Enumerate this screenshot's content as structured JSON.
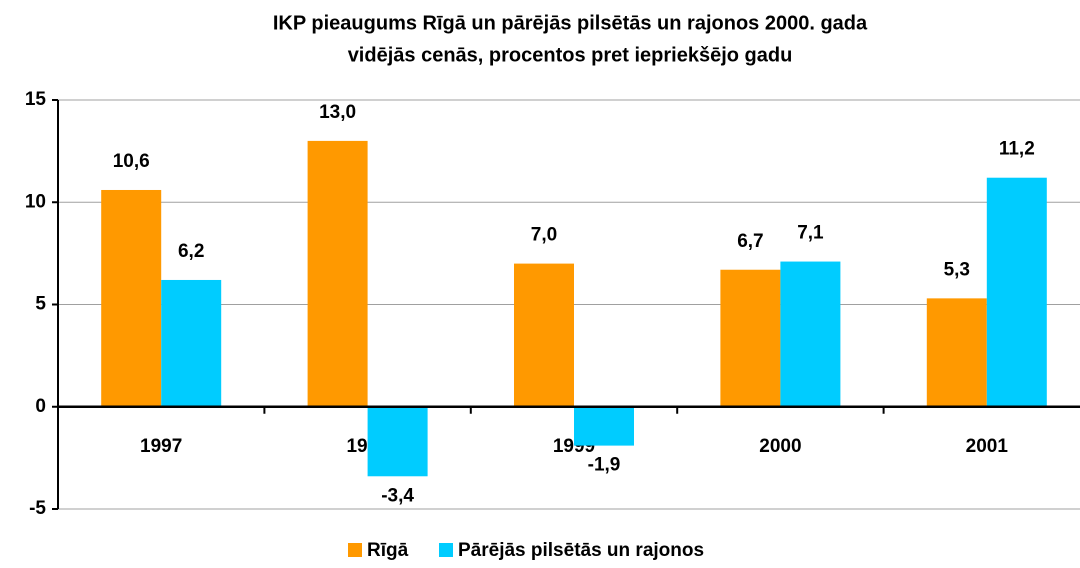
{
  "chart_data": {
    "type": "bar",
    "title": [
      "IKP pieaugums Rīgā un pārējās pilsētās un rajonos 2000. gada",
      "vidējās cenās, procentos pret iepriekšējo gadu"
    ],
    "categories": [
      "1997",
      "1998",
      "1999",
      "2000",
      "2001"
    ],
    "series": [
      {
        "name": "Rīgā",
        "color": "#ff9900",
        "values": [
          10.6,
          13.0,
          7.0,
          6.7,
          5.3
        ],
        "value_labels": [
          "10,6",
          "13,0",
          "7,0",
          "6,7",
          "5,3"
        ]
      },
      {
        "name": "Pārējās pilsētās un rajonos",
        "color": "#00ccff",
        "values": [
          6.2,
          -3.4,
          -1.9,
          7.1,
          11.2
        ],
        "value_labels": [
          "6,2",
          "-3,4",
          "-1,9",
          "7,1",
          "11,2"
        ]
      }
    ],
    "ylim": [
      -5,
      15
    ],
    "yticks": [
      15,
      10,
      5,
      0,
      -5
    ],
    "grid": true,
    "legend": "bottom"
  }
}
